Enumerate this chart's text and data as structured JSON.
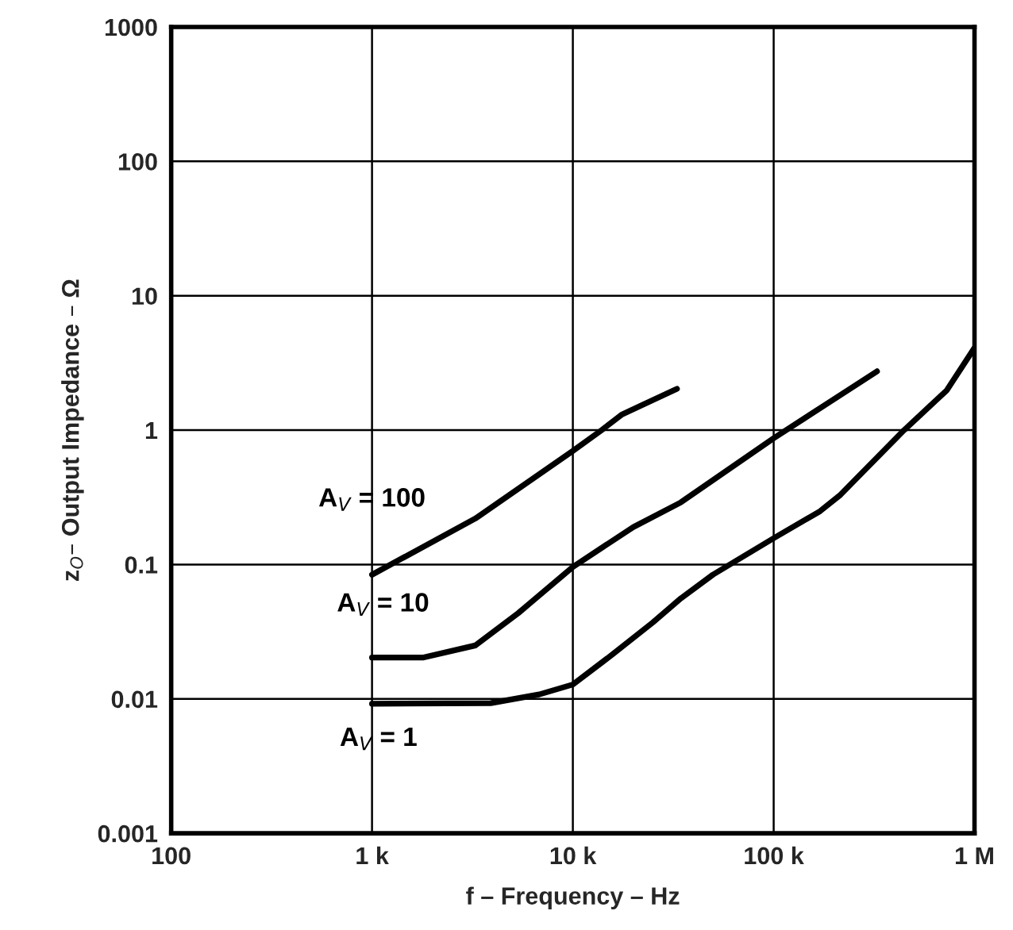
{
  "chart_data": {
    "type": "line",
    "xlabel": "f – Frequency – Hz",
    "ylabel": "z$_{O}$– Output Impedance – Ω",
    "log": "xy",
    "grid": true,
    "legend": false,
    "marker": "none",
    "line_style": "solid",
    "xlim": [
      100,
      1000000
    ],
    "ylim": [
      0.001,
      1000
    ],
    "xticks": [
      100,
      {
        "value": 1000,
        "label": "1 k"
      },
      {
        "value": 10000,
        "label": "10 k"
      },
      {
        "value": 100000,
        "label": "100 k"
      },
      {
        "value": 1000000,
        "label": "1 M"
      }
    ],
    "yticks": [
      0.001,
      0.01,
      0.1,
      1,
      10,
      100,
      1000
    ],
    "series": [
      {
        "name": "A$_{V}$ = 100",
        "color": "#000000",
        "x": [
          1000,
          3270,
          10000,
          13900,
          17600,
          33000
        ],
        "values": [
          0.084,
          0.22,
          0.7,
          1.0,
          1.31,
          2.03
        ]
      },
      {
        "name": "A$_{V}$ = 10",
        "color": "#000000",
        "x": [
          1000,
          1790,
          3270,
          5350,
          10000,
          20000,
          34500,
          100000,
          327000
        ],
        "values": [
          0.0203,
          0.0203,
          0.025,
          0.0435,
          0.096,
          0.19,
          0.29,
          0.87,
          2.74
        ]
      },
      {
        "name": "A$_{V}$ = 1",
        "color": "#000000",
        "x": [
          1000,
          3900,
          6800,
          10000,
          15800,
          25000,
          34500,
          49800,
          100000,
          170000,
          215000,
          446000,
          728000,
          1000000
        ],
        "values": [
          0.0092,
          0.0093,
          0.0108,
          0.0128,
          0.0215,
          0.037,
          0.056,
          0.084,
          0.157,
          0.249,
          0.33,
          1.0,
          1.98,
          4.1
        ]
      }
    ]
  }
}
